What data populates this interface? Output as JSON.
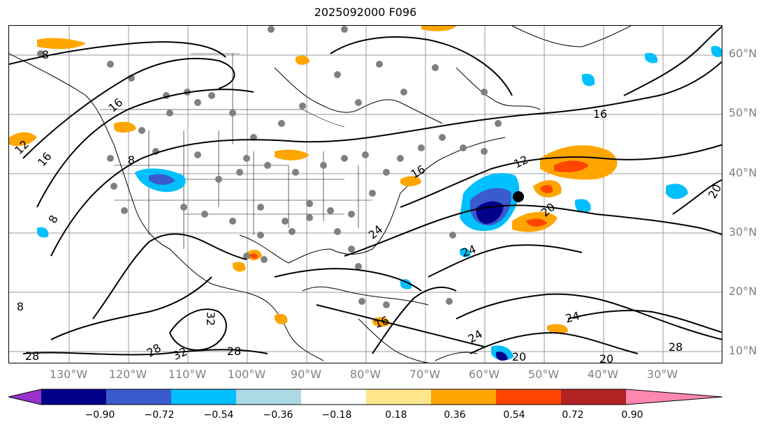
{
  "title": "2025092000 F096",
  "lat_labels": [
    "60°N",
    "50°N",
    "40°N",
    "30°N",
    "20°N",
    "10°N"
  ],
  "lon_labels": [
    "130°W",
    "120°W",
    "110°W",
    "100°W",
    "90°W",
    "80°W",
    "70°W",
    "60°W",
    "50°W",
    "40°W",
    "30°W"
  ],
  "colorbar": {
    "tick_labels": [
      "−0.90",
      "−0.72",
      "−0.54",
      "−0.36",
      "−0.18",
      "0.18",
      "0.36",
      "0.54",
      "0.72",
      "0.90"
    ],
    "colors": [
      "#9932cc",
      "#00008b",
      "#3a5bcc",
      "#00bfff",
      "#add8e6",
      "#ffffff",
      "#ffe68c",
      "#ffa500",
      "#ff4500",
      "#b22222",
      "#ff88b0"
    ]
  },
  "contour_labels": [
    "8",
    "8",
    "8",
    "8",
    "12",
    "12",
    "16",
    "16",
    "16",
    "16",
    "16",
    "20",
    "20",
    "20",
    "20",
    "24",
    "24",
    "24",
    "24",
    "28",
    "28",
    "28",
    "28",
    "32",
    "32"
  ]
}
